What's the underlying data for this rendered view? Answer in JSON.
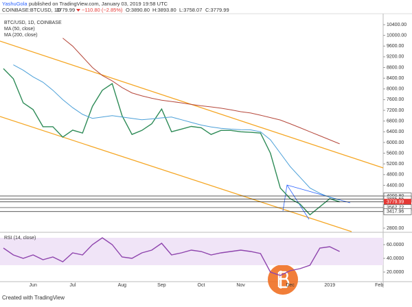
{
  "header": {
    "publisher": "YashuGola",
    "published": "published on TradingView.com, January 03, 2019 19:58 UTC",
    "symbol": "COINBASE:BTCUSD, 1D",
    "last": "3779.99",
    "change": "−110.80 (−2.85%)",
    "open": "O:3890.80",
    "high": "H:3893.80",
    "low": "L:3758.07",
    "close": "C:3779.99"
  },
  "chart_data": [
    {
      "type": "line",
      "categories": [
        null,
        null,
        null,
        "Jun",
        null,
        null,
        null,
        "Jul",
        null,
        null,
        null,
        null,
        "Aug",
        null,
        null,
        null,
        "Sep",
        null,
        null,
        null,
        "Oct",
        null,
        null,
        null,
        "Nov",
        null,
        null,
        null,
        null,
        "Dec",
        null,
        null,
        null,
        "2019",
        null,
        null,
        null,
        null,
        "Feb"
      ],
      "series": [
        {
          "name": "BTC/USD, 1D, COINBASE",
          "color": "#2e8b57",
          "values": [
            8760,
            8380,
            7480,
            7230,
            6590,
            6590,
            6200,
            6460,
            6350,
            7350,
            7950,
            8200,
            7000,
            6300,
            6450,
            6700,
            7250,
            6400,
            6500,
            6600,
            6550,
            6300,
            6450,
            6450,
            6400,
            6380,
            6350,
            5600,
            4300,
            3900,
            3700,
            3300,
            3600,
            3900,
            3780,
            null,
            null,
            null,
            null
          ]
        },
        {
          "name": "MA (50, close)",
          "color": "#4a9fd8",
          "values": [
            null,
            8900,
            8700,
            8450,
            8250,
            7950,
            7600,
            7300,
            7050,
            6900,
            6950,
            7000,
            6950,
            6900,
            6850,
            6880,
            6920,
            6950,
            6850,
            6750,
            6650,
            6580,
            6530,
            6500,
            6480,
            6470,
            6400,
            6100,
            5600,
            5100,
            4700,
            4300,
            4100,
            3950,
            3850,
            null,
            null,
            null,
            null
          ]
        },
        {
          "name": "MA (200, close)",
          "color": "#b5473a",
          "values": [
            null,
            null,
            null,
            null,
            null,
            null,
            9900,
            9600,
            9200,
            8800,
            8500,
            8300,
            8050,
            7850,
            7740,
            7650,
            7580,
            7530,
            7480,
            7420,
            7370,
            7330,
            7280,
            7220,
            7150,
            7100,
            7020,
            6930,
            6840,
            6700,
            6550,
            6400,
            6250,
            6100,
            5950,
            null,
            null,
            null,
            null
          ]
        }
      ],
      "ylim": [
        2670,
        10810
      ],
      "yticks": [
        {
          "value": 2800,
          "label": "2800.00"
        },
        {
          "value": 4400,
          "label": "4400.00"
        },
        {
          "value": 4800,
          "label": "4800.00"
        },
        {
          "value": 5200,
          "label": "5200.00"
        },
        {
          "value": 5600,
          "label": "5600.00"
        },
        {
          "value": 6000,
          "label": "6000.00"
        },
        {
          "value": 6400,
          "label": "6400.00"
        },
        {
          "value": 6800,
          "label": "6800.00"
        },
        {
          "value": 7200,
          "label": "7200.00"
        },
        {
          "value": 7600,
          "label": "7600.00"
        },
        {
          "value": 8000,
          "label": "8000.00"
        },
        {
          "value": 8400,
          "label": "8400.00"
        },
        {
          "value": 8800,
          "label": "8800.00"
        },
        {
          "value": 9200,
          "label": "9200.00"
        },
        {
          "value": 9600,
          "label": "9600.00"
        },
        {
          "value": 10000,
          "label": "10000.00"
        },
        {
          "value": 10400,
          "label": "10400.00"
        }
      ],
      "price_levels": [
        {
          "value": 4000.8,
          "label": "4000.80"
        },
        3885.65,
        3779.99,
        3567.72,
        3417.96
      ],
      "current_price_color": "#e53935"
    },
    {
      "type": "line",
      "title": "RSI (14, close)",
      "series": [
        {
          "name": "RSI",
          "color": "#8e44ad",
          "values": [
            55,
            45,
            40,
            45,
            38,
            42,
            35,
            48,
            45,
            60,
            70,
            60,
            42,
            40,
            48,
            52,
            62,
            45,
            48,
            52,
            50,
            45,
            48,
            50,
            52,
            50,
            47,
            20,
            15,
            22,
            25,
            30,
            55,
            57,
            50,
            null,
            null,
            null,
            null
          ]
        }
      ],
      "band": [
        30,
        70
      ],
      "band_color": "#f0e4f7",
      "ylim": [
        6,
        77
      ],
      "yticks": [
        {
          "value": 20,
          "label": "20.0000"
        },
        {
          "value": 40,
          "label": "40.0000"
        },
        {
          "value": 60,
          "label": "60.0000"
        }
      ]
    }
  ],
  "footer": "Created with TradingView"
}
